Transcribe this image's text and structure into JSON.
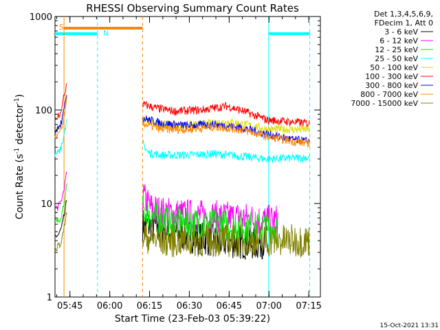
{
  "chart_data": {
    "type": "line",
    "title": "RHESSI Observing Summary Count Rates",
    "xlabel": "Start Time (23-Feb-03 05:39:22)",
    "ylabel_main": "Count Rate (s",
    "ylabel_sup1": "-1",
    "ylabel_mid": " detector",
    "ylabel_sup2": "-1",
    "ylabel_end": ")",
    "yscale": "log",
    "ylim": [
      1,
      1000
    ],
    "xlim_minutes": [
      0,
      100
    ],
    "y_ticks": [
      {
        "value": 1,
        "label": "1"
      },
      {
        "value": 10,
        "label": "10"
      },
      {
        "value": 100,
        "label": "100"
      },
      {
        "value": 1000,
        "label": "1000"
      }
    ],
    "x_ticks": [
      {
        "minute": 5.63,
        "label": "05:45"
      },
      {
        "minute": 20.63,
        "label": "06:00"
      },
      {
        "minute": 35.63,
        "label": "06:15"
      },
      {
        "minute": 50.63,
        "label": "06:30"
      },
      {
        "minute": 65.63,
        "label": "06:45"
      },
      {
        "minute": 80.63,
        "label": "07:00"
      },
      {
        "minute": 95.63,
        "label": "07:15"
      }
    ],
    "legend_header": [
      "Det 1,3,4,5,6,9,",
      "FDecim 1, Att 0"
    ],
    "series": [
      {
        "name": "3 - 6 keV",
        "color": "#000000",
        "points": [
          [
            33,
            6
          ],
          [
            40,
            5.5
          ],
          [
            50,
            4.5
          ],
          [
            60,
            4
          ],
          [
            70,
            3.8
          ],
          [
            76,
            3.7
          ],
          [
            80,
            4
          ]
        ]
      },
      {
        "name": "6 - 12 keV",
        "color": "#ff00ff",
        "points": [
          [
            33,
            12
          ],
          [
            36,
            9
          ],
          [
            40,
            8
          ],
          [
            50,
            7.5
          ],
          [
            60,
            7.2
          ],
          [
            70,
            7
          ],
          [
            80,
            6.5
          ],
          [
            84,
            6.5
          ]
        ]
      },
      {
        "name": "12 - 25 keV",
        "color": "#00ee00",
        "points": [
          [
            33,
            8.5
          ],
          [
            38,
            7
          ],
          [
            45,
            6.2
          ],
          [
            55,
            6
          ],
          [
            65,
            5.8
          ],
          [
            75,
            5.5
          ],
          [
            84,
            5.5
          ]
        ]
      },
      {
        "name": "25 - 50 keV",
        "color": "#00ffff",
        "points": [
          [
            33,
            45
          ],
          [
            35,
            35
          ],
          [
            40,
            33
          ],
          [
            50,
            33
          ],
          [
            60,
            34
          ],
          [
            70,
            32
          ],
          [
            80,
            30
          ],
          [
            96,
            31
          ]
        ]
      },
      {
        "name": "50 - 100 keV",
        "color": "#dddd00",
        "points": [
          [
            33,
            80
          ],
          [
            38,
            72
          ],
          [
            45,
            68
          ],
          [
            55,
            70
          ],
          [
            65,
            75
          ],
          [
            72,
            70
          ],
          [
            80,
            62
          ],
          [
            96,
            62
          ]
        ]
      },
      {
        "name": "100 - 300 keV",
        "color": "#ff0000",
        "points": [
          [
            33,
            115
          ],
          [
            38,
            105
          ],
          [
            45,
            97
          ],
          [
            55,
            100
          ],
          [
            65,
            110
          ],
          [
            72,
            95
          ],
          [
            80,
            78
          ],
          [
            96,
            72
          ]
        ]
      },
      {
        "name": "300 - 800 keV",
        "color": "#0000ff",
        "points": [
          [
            33,
            82
          ],
          [
            40,
            72
          ],
          [
            50,
            68
          ],
          [
            60,
            70
          ],
          [
            70,
            65
          ],
          [
            80,
            55
          ],
          [
            90,
            48
          ],
          [
            96,
            46
          ]
        ]
      },
      {
        "name": "800 - 7000 keV",
        "color": "#ff8800",
        "points": [
          [
            33,
            72
          ],
          [
            40,
            62
          ],
          [
            50,
            62
          ],
          [
            60,
            66
          ],
          [
            70,
            62
          ],
          [
            80,
            52
          ],
          [
            90,
            46
          ],
          [
            96,
            44
          ]
        ]
      },
      {
        "name": "7000 - 15000 keV",
        "color": "#808000",
        "points": [
          [
            33,
            4.5
          ],
          [
            40,
            4
          ],
          [
            50,
            4
          ],
          [
            60,
            4
          ],
          [
            70,
            4
          ],
          [
            80,
            4
          ],
          [
            90,
            4
          ],
          [
            96,
            4
          ]
        ]
      }
    ],
    "pre_gap_segment": {
      "minute_start": 0,
      "minute_end": 4.7
    },
    "annotations": [
      {
        "text": "S",
        "color": "#ff8800"
      },
      {
        "text": "N",
        "color": "#00ffff"
      }
    ],
    "saa_bars": [
      {
        "name": "S",
        "color": "#ff8800",
        "start": 3.4,
        "end": 33.0
      },
      {
        "name": "N",
        "color": "#00ffff",
        "start": 0,
        "end": 16.0
      },
      {
        "name": "N",
        "color": "#00ffff",
        "start": 80.5,
        "end": 96.0
      }
    ],
    "vlines": [
      {
        "minute": 3.4,
        "color": "#ff8800",
        "style": "solid"
      },
      {
        "minute": 16.0,
        "color": "#00ffff",
        "style": "dashed"
      },
      {
        "minute": 33.0,
        "color": "#ff8800",
        "style": "dashed"
      },
      {
        "minute": 80.5,
        "color": "#00ffff",
        "style": "solid"
      },
      {
        "minute": 96.0,
        "color": "#00ffff",
        "style": "dashed"
      }
    ],
    "timestamp": "15-Oct-2021 13:31"
  }
}
